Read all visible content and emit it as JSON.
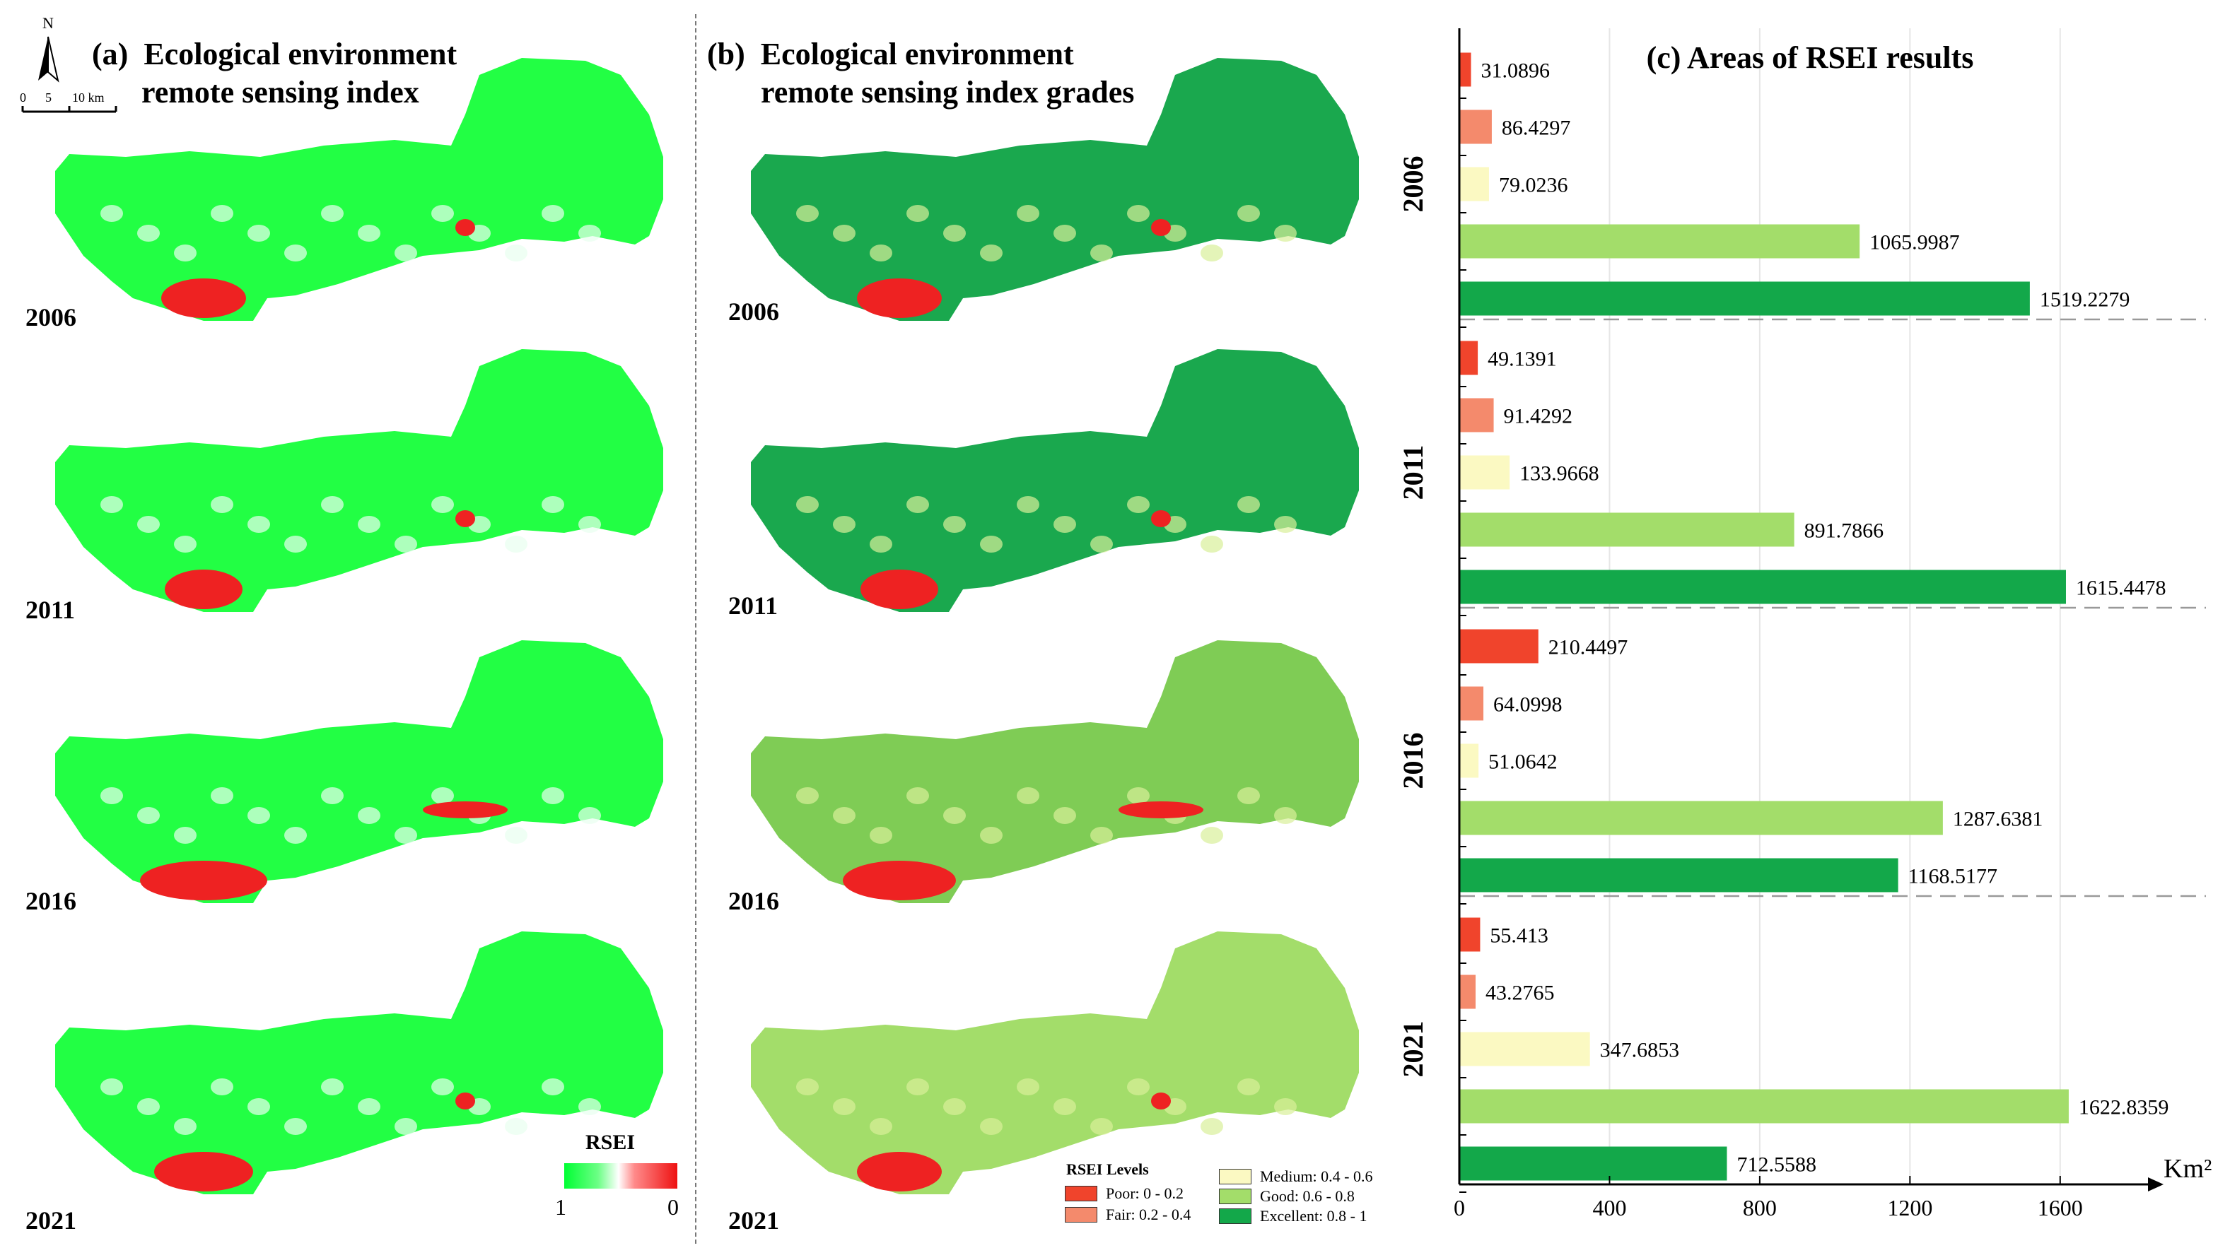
{
  "panel_a": {
    "label": "(a)",
    "title_line1": "Ecological environment",
    "title_line2": "remote sensing index",
    "years": [
      "2006",
      "2011",
      "2016",
      "2021"
    ],
    "north_label": "N",
    "scale_ticks": [
      "0",
      "5",
      "10 km"
    ],
    "legend": {
      "title": "RSEI",
      "high": "1",
      "low": "0",
      "high_color": "#00ff33",
      "low_color": "#ee1111"
    }
  },
  "panel_b": {
    "label": "(b)",
    "title_line1": "Ecological environment",
    "title_line2": "remote sensing index grades",
    "years": [
      "2006",
      "2011",
      "2016",
      "2021"
    ],
    "legend": {
      "title": "RSEI Levels",
      "items": [
        {
          "label": "Poor: 0 - 0.2",
          "color": "#f0442c"
        },
        {
          "label": "Fair: 0.2 - 0.4",
          "color": "#f48a6c"
        },
        {
          "label": "Medium: 0.4 - 0.6",
          "color": "#fbf9c2"
        },
        {
          "label": "Good: 0.6 - 0.8",
          "color": "#a3dd6a"
        },
        {
          "label": "Excellent: 0.8 - 1",
          "color": "#13a84a"
        }
      ]
    }
  },
  "chart_data": {
    "type": "bar",
    "orientation": "horizontal",
    "title": "(c) Areas of RSEI results",
    "xlabel": "Km²",
    "xlim": [
      0,
      1800
    ],
    "xticks": [
      "0",
      "400",
      "800",
      "1200",
      "1600"
    ],
    "categories": [
      "Poor",
      "Fair",
      "Medium",
      "Good",
      "Excellent"
    ],
    "colors": [
      "#f0442c",
      "#f48a6c",
      "#fbf9c2",
      "#a3dd6a",
      "#13a84a"
    ],
    "groups": [
      {
        "year": "2006",
        "values": [
          31.0896,
          86.4297,
          79.0236,
          1065.9987,
          1519.2279
        ]
      },
      {
        "year": "2011",
        "values": [
          49.1391,
          91.4292,
          133.9668,
          891.7866,
          1615.4478
        ]
      },
      {
        "year": "2016",
        "values": [
          210.4497,
          64.0998,
          51.0642,
          1287.6381,
          1168.5177
        ]
      },
      {
        "year": "2021",
        "values": [
          55.413,
          43.2765,
          347.6853,
          1622.8359,
          712.5588
        ]
      }
    ]
  }
}
